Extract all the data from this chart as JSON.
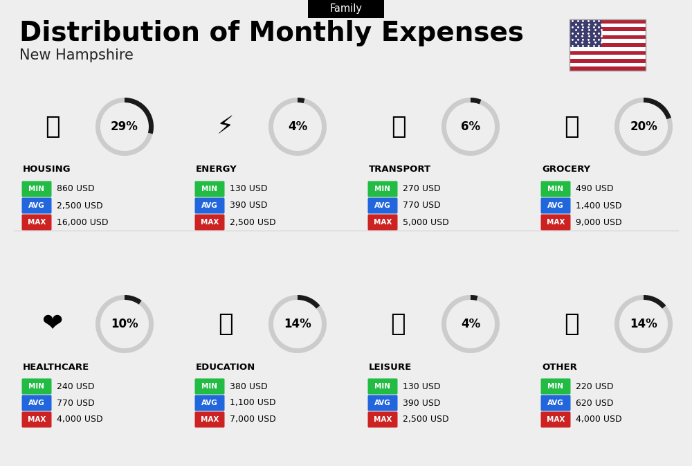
{
  "title": "Distribution of Monthly Expenses",
  "subtitle": "New Hampshire",
  "tag": "Family",
  "background_color": "#eeeeee",
  "categories": [
    {
      "name": "HOUSING",
      "percent": 29,
      "min": "860 USD",
      "avg": "2,500 USD",
      "max": "16,000 USD",
      "row": 0,
      "col": 0
    },
    {
      "name": "ENERGY",
      "percent": 4,
      "min": "130 USD",
      "avg": "390 USD",
      "max": "2,500 USD",
      "row": 0,
      "col": 1
    },
    {
      "name": "TRANSPORT",
      "percent": 6,
      "min": "270 USD",
      "avg": "770 USD",
      "max": "5,000 USD",
      "row": 0,
      "col": 2
    },
    {
      "name": "GROCERY",
      "percent": 20,
      "min": "490 USD",
      "avg": "1,400 USD",
      "max": "9,000 USD",
      "row": 0,
      "col": 3
    },
    {
      "name": "HEALTHCARE",
      "percent": 10,
      "min": "240 USD",
      "avg": "770 USD",
      "max": "4,000 USD",
      "row": 1,
      "col": 0
    },
    {
      "name": "EDUCATION",
      "percent": 14,
      "min": "380 USD",
      "avg": "1,100 USD",
      "max": "7,000 USD",
      "row": 1,
      "col": 1
    },
    {
      "name": "LEISURE",
      "percent": 4,
      "min": "130 USD",
      "avg": "390 USD",
      "max": "2,500 USD",
      "row": 1,
      "col": 2
    },
    {
      "name": "OTHER",
      "percent": 14,
      "min": "220 USD",
      "avg": "620 USD",
      "max": "4,000 USD",
      "row": 1,
      "col": 3
    }
  ],
  "min_color": "#22bb44",
  "avg_color": "#2266dd",
  "max_color": "#cc2222",
  "circle_filled_color": "#1a1a1a",
  "circle_empty_color": "#cccccc",
  "flag_stripes": [
    "#B22234",
    "#ffffff"
  ],
  "flag_canton": "#3C3B6E"
}
